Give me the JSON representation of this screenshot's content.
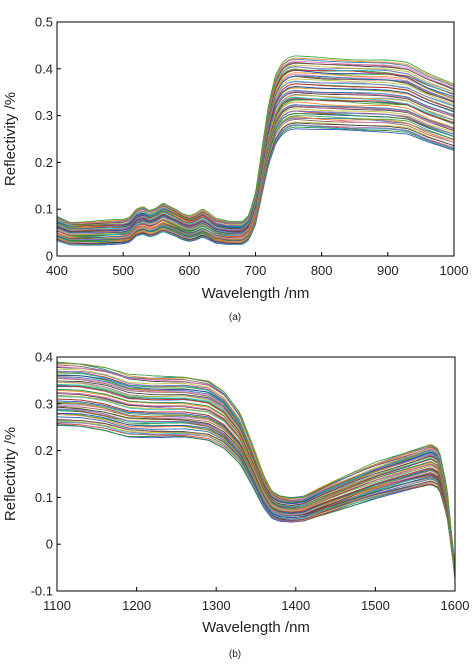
{
  "chart_data": [
    {
      "type": "line",
      "caption": "(a)",
      "xlabel": "Wavelength /nm",
      "ylabel": "Reflectivity /%",
      "xlim": [
        400,
        1000
      ],
      "ylim": [
        0,
        0.5
      ],
      "xticks": [
        400,
        500,
        600,
        700,
        800,
        900,
        1000
      ],
      "yticks": [
        0,
        0.1,
        0.2,
        0.3,
        0.4,
        0.5
      ],
      "grid": false,
      "legend": "none",
      "series_count": 60,
      "spread": 0.045,
      "mean_curve": {
        "x": [
          400,
          420,
          450,
          480,
          500,
          510,
          520,
          530,
          540,
          550,
          560,
          570,
          580,
          590,
          600,
          610,
          620,
          630,
          640,
          660,
          680,
          690,
          700,
          710,
          720,
          730,
          740,
          750,
          760,
          800,
          850,
          900,
          930,
          960,
          1000
        ],
        "values": [
          0.058,
          0.047,
          0.048,
          0.05,
          0.051,
          0.055,
          0.07,
          0.075,
          0.068,
          0.073,
          0.082,
          0.076,
          0.07,
          0.062,
          0.058,
          0.062,
          0.07,
          0.062,
          0.053,
          0.048,
          0.048,
          0.06,
          0.1,
          0.18,
          0.26,
          0.31,
          0.335,
          0.345,
          0.348,
          0.345,
          0.342,
          0.34,
          0.335,
          0.315,
          0.295
        ]
      }
    },
    {
      "type": "line",
      "caption": "(b)",
      "xlabel": "Wavelength /nm",
      "ylabel": "Reflectivity /%",
      "xlim": [
        1100,
        1600
      ],
      "ylim": [
        -0.1,
        0.4
      ],
      "xticks": [
        1100,
        1200,
        1300,
        1400,
        1500,
        1600
      ],
      "yticks": [
        -0.1,
        0,
        0.1,
        0.2,
        0.3,
        0.4
      ],
      "grid": false,
      "legend": "none",
      "series_count": 60,
      "spread": 0.04,
      "mean_curve": {
        "x": [
          1100,
          1130,
          1160,
          1190,
          1220,
          1260,
          1290,
          1310,
          1330,
          1345,
          1360,
          1370,
          1380,
          1395,
          1410,
          1430,
          1460,
          1500,
          1540,
          1570,
          1580,
          1590,
          1600
        ],
        "values": [
          0.32,
          0.318,
          0.31,
          0.295,
          0.292,
          0.292,
          0.285,
          0.265,
          0.225,
          0.17,
          0.11,
          0.083,
          0.075,
          0.072,
          0.075,
          0.09,
          0.11,
          0.135,
          0.155,
          0.17,
          0.16,
          0.09,
          -0.06
        ]
      }
    }
  ],
  "colors": [
    "#1f3fbf",
    "#2a8c2a",
    "#d62728",
    "#17becf",
    "#9467bd",
    "#bcbd22",
    "#333333",
    "#8c564b",
    "#e377c2",
    "#1f77b4",
    "#ff7f0e",
    "#2ca02c"
  ]
}
